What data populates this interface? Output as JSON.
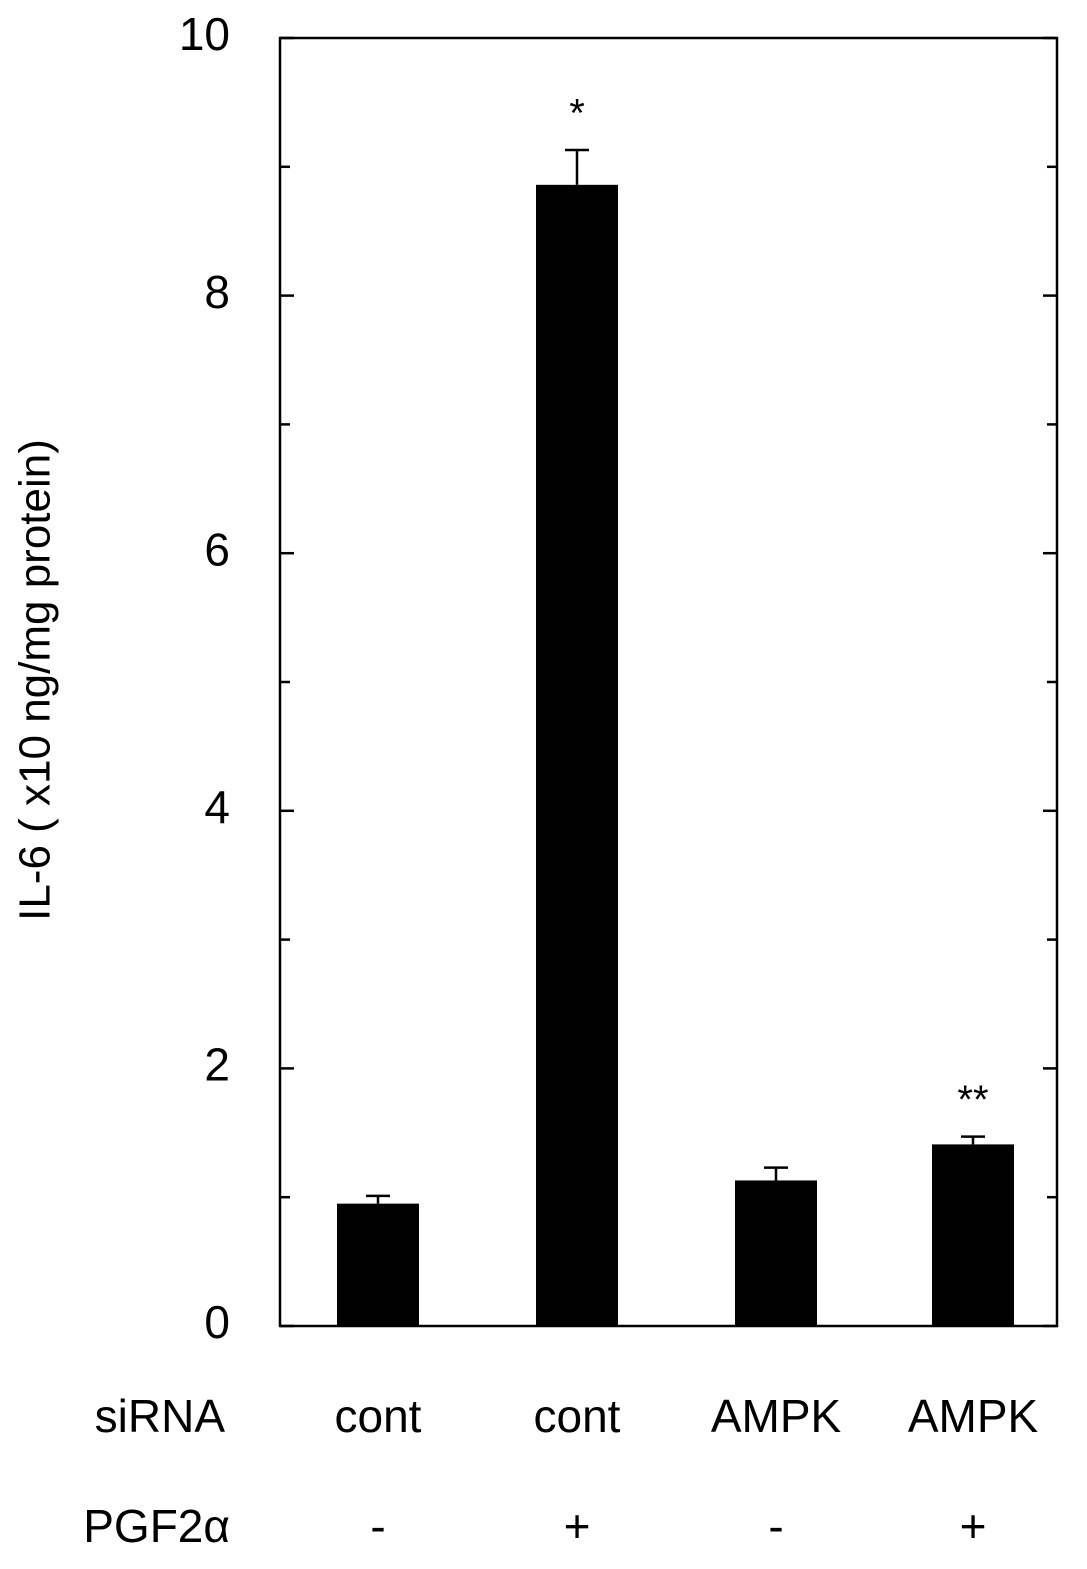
{
  "chart_data": {
    "type": "bar",
    "ylabel": "IL-6 ( x10 ng/mg protein)",
    "categories_label": "siRNA",
    "categories": [
      "cont",
      "cont",
      "AMPK",
      "AMPK"
    ],
    "treatment": {
      "label": "PGF2α",
      "values": [
        "-",
        "+",
        "-",
        "+"
      ]
    },
    "values": [
      0.95,
      8.86,
      1.13,
      1.41
    ],
    "errors": [
      0.06,
      0.27,
      0.1,
      0.06
    ],
    "annotations": [
      null,
      "*",
      null,
      "**"
    ],
    "color": "#000000",
    "ylim": [
      0,
      10
    ],
    "yticks": [
      0,
      2,
      4,
      6,
      8,
      10
    ],
    "yminorticks": [
      1,
      3,
      5,
      7,
      9
    ]
  }
}
